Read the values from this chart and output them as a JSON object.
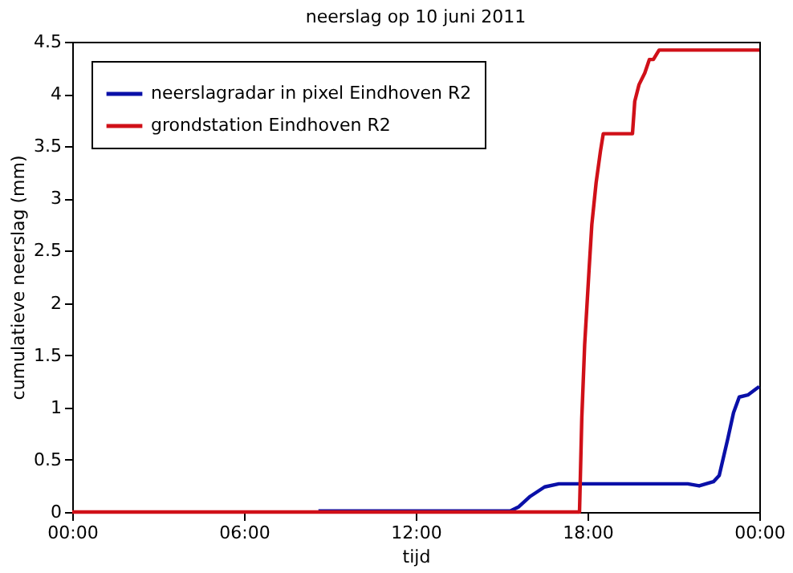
{
  "chart_data": {
    "type": "line",
    "title": "neerslag op 10 juni 2011",
    "xlabel": "tijd",
    "ylabel": "cumulatieve neerslag (mm)",
    "xlim": [
      0,
      24
    ],
    "xticks": [
      {
        "value": 0,
        "label": "00:00"
      },
      {
        "value": 6,
        "label": "06:00"
      },
      {
        "value": 12,
        "label": "12:00"
      },
      {
        "value": 18,
        "label": "18:00"
      },
      {
        "value": 24,
        "label": "00:00"
      }
    ],
    "ylim": [
      0,
      4.5
    ],
    "yticks": [
      0,
      0.5,
      1,
      1.5,
      2,
      2.5,
      3,
      3.5,
      4,
      4.5
    ],
    "grid": false,
    "legend": "top left",
    "line_style": "solid",
    "marker": "none",
    "series": [
      {
        "name": "neerslagradar in pixel Eindhoven R2",
        "color": "#0a10a8",
        "x": [
          8.6,
          15.3,
          15.6,
          16.0,
          16.5,
          17.0,
          20.0,
          21.5,
          21.9,
          22.4,
          22.6,
          22.9,
          23.1,
          23.3,
          23.6,
          23.9,
          24.0
        ],
        "values": [
          0.01,
          0.01,
          0.05,
          0.15,
          0.24,
          0.27,
          0.27,
          0.27,
          0.25,
          0.29,
          0.35,
          0.7,
          0.95,
          1.1,
          1.12,
          1.18,
          1.2
        ]
      },
      {
        "name": "grondstation Eindhoven R2",
        "color": "#d01018",
        "x": [
          0,
          17.72,
          17.8,
          17.9,
          18.05,
          18.15,
          18.3,
          18.45,
          18.55,
          19.57,
          19.65,
          19.8,
          20.0,
          20.16,
          20.3,
          20.5,
          24.0
        ],
        "values": [
          0,
          0,
          0.9,
          1.6,
          2.3,
          2.75,
          3.15,
          3.45,
          3.62,
          3.62,
          3.93,
          4.09,
          4.2,
          4.33,
          4.33,
          4.42,
          4.42
        ]
      }
    ]
  }
}
